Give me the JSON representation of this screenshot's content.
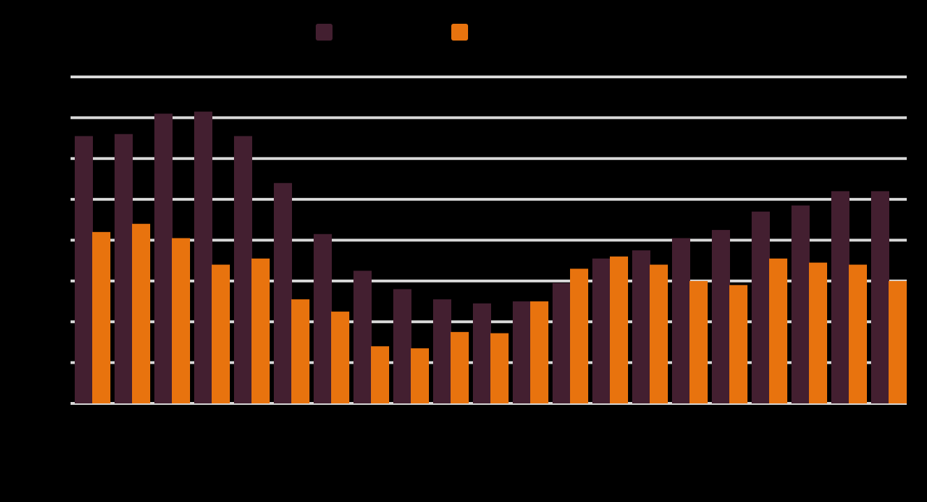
{
  "chart_data": {
    "type": "bar",
    "title": "",
    "xlabel": "",
    "ylabel": "",
    "ylim": [
      0,
      8
    ],
    "grid": true,
    "legend": "top-center",
    "categories": [
      "",
      "",
      "",
      "",
      "",
      "",
      "",
      "",
      "",
      "",
      "",
      "",
      "",
      "",
      "",
      "",
      "",
      "",
      "",
      "",
      ""
    ],
    "series": [
      {
        "name": "",
        "color": "#431f30",
        "values": [
          6.55,
          6.6,
          7.1,
          7.15,
          6.55,
          5.4,
          4.15,
          3.25,
          2.8,
          2.55,
          2.45,
          2.5,
          2.95,
          3.55,
          3.75,
          4.05,
          4.25,
          4.7,
          4.85,
          5.2,
          5.2
        ]
      },
      {
        "name": "",
        "color": "#e8730e",
        "values": [
          4.2,
          4.4,
          4.05,
          3.4,
          3.55,
          2.55,
          2.25,
          1.4,
          1.35,
          1.75,
          1.72,
          2.5,
          3.3,
          3.6,
          3.4,
          3.0,
          2.9,
          3.55,
          3.45,
          3.4,
          3.0
        ]
      }
    ]
  }
}
